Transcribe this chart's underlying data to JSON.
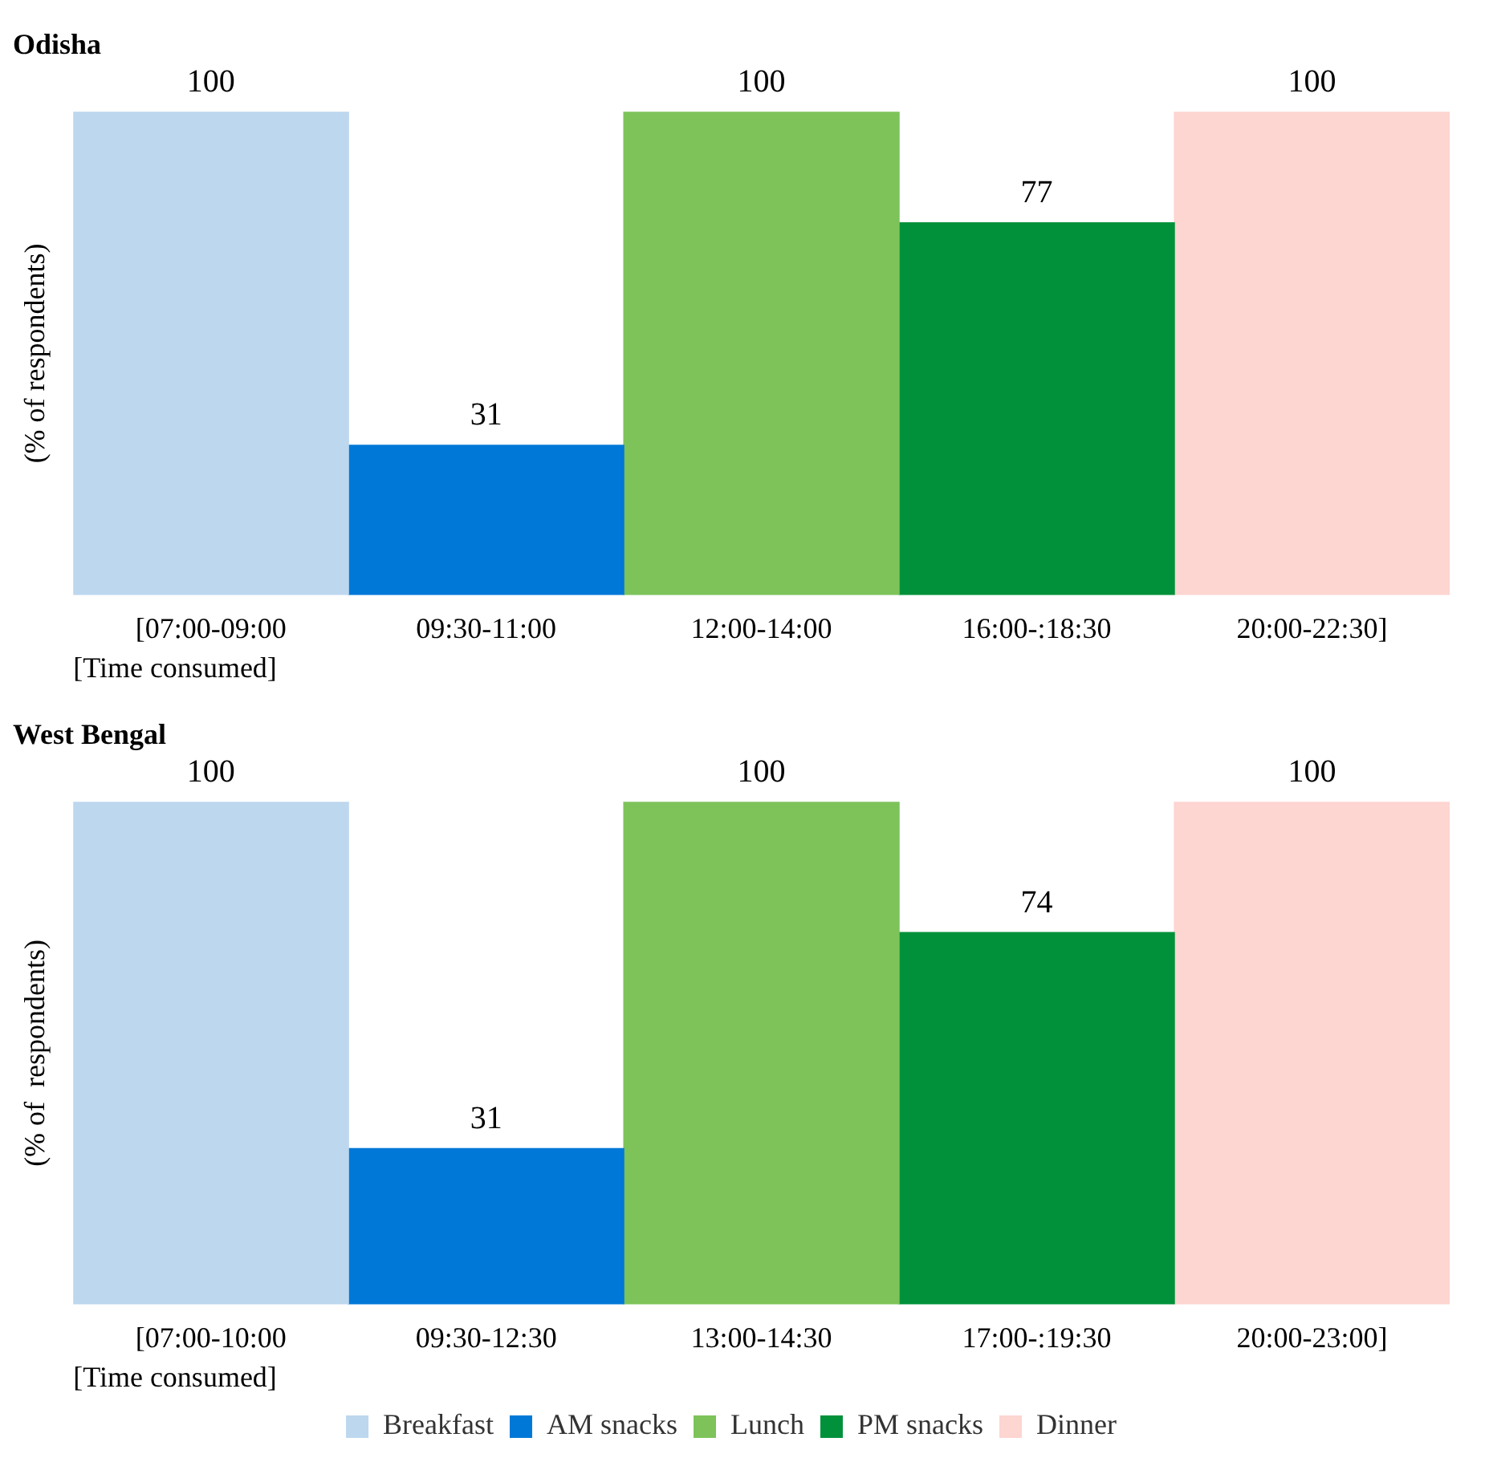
{
  "chart_data": [
    {
      "type": "bar",
      "title": "Odisha",
      "ylabel": "(% of respondents)",
      "xlabel": "[Time consumed]",
      "categories": [
        "[07:00-09:00",
        "09:30-11:00",
        "12:00-14:00",
        "16:00-:18:30",
        "20:00-22:30]"
      ],
      "data_labels": true,
      "tick_labels": "x",
      "series": [
        {
          "color": "#bdd7ee",
          "values": [
            100,
            null,
            null,
            null,
            null
          ]
        },
        {
          "color": "#0078d7",
          "values": [
            null,
            31,
            null,
            null,
            null
          ]
        },
        {
          "color": "#7dc35a",
          "values": [
            null,
            null,
            100,
            null,
            null
          ]
        },
        {
          "color": "#00913a",
          "values": [
            null,
            null,
            null,
            77,
            null
          ]
        },
        {
          "color": "#fdd5d1",
          "values": [
            null,
            null,
            null,
            null,
            100
          ]
        }
      ]
    },
    {
      "type": "bar",
      "title": "West Bengal",
      "ylabel": "(% of  respondents)",
      "xlabel": "[Time consumed]",
      "categories": [
        "[07:00-10:00",
        "09:30-12:30",
        "13:00-14:30",
        "17:00-:19:30",
        "20:00-23:00]"
      ],
      "data_labels": true,
      "tick_labels": "x",
      "legend": "bottom",
      "series": [
        {
          "name": "Breakfast",
          "color": "#bdd7ee",
          "values": [
            100,
            null,
            null,
            null,
            null
          ]
        },
        {
          "name": "AM snacks",
          "color": "#0078d7",
          "values": [
            null,
            31,
            null,
            null,
            null
          ]
        },
        {
          "name": "Lunch",
          "color": "#7dc35a",
          "values": [
            null,
            null,
            100,
            null,
            null
          ]
        },
        {
          "name": "PM snacks",
          "color": "#00913a",
          "values": [
            null,
            null,
            null,
            74,
            null
          ]
        },
        {
          "name": "Dinner",
          "color": "#fdd5d1",
          "values": [
            null,
            null,
            null,
            null,
            100
          ]
        }
      ]
    }
  ]
}
